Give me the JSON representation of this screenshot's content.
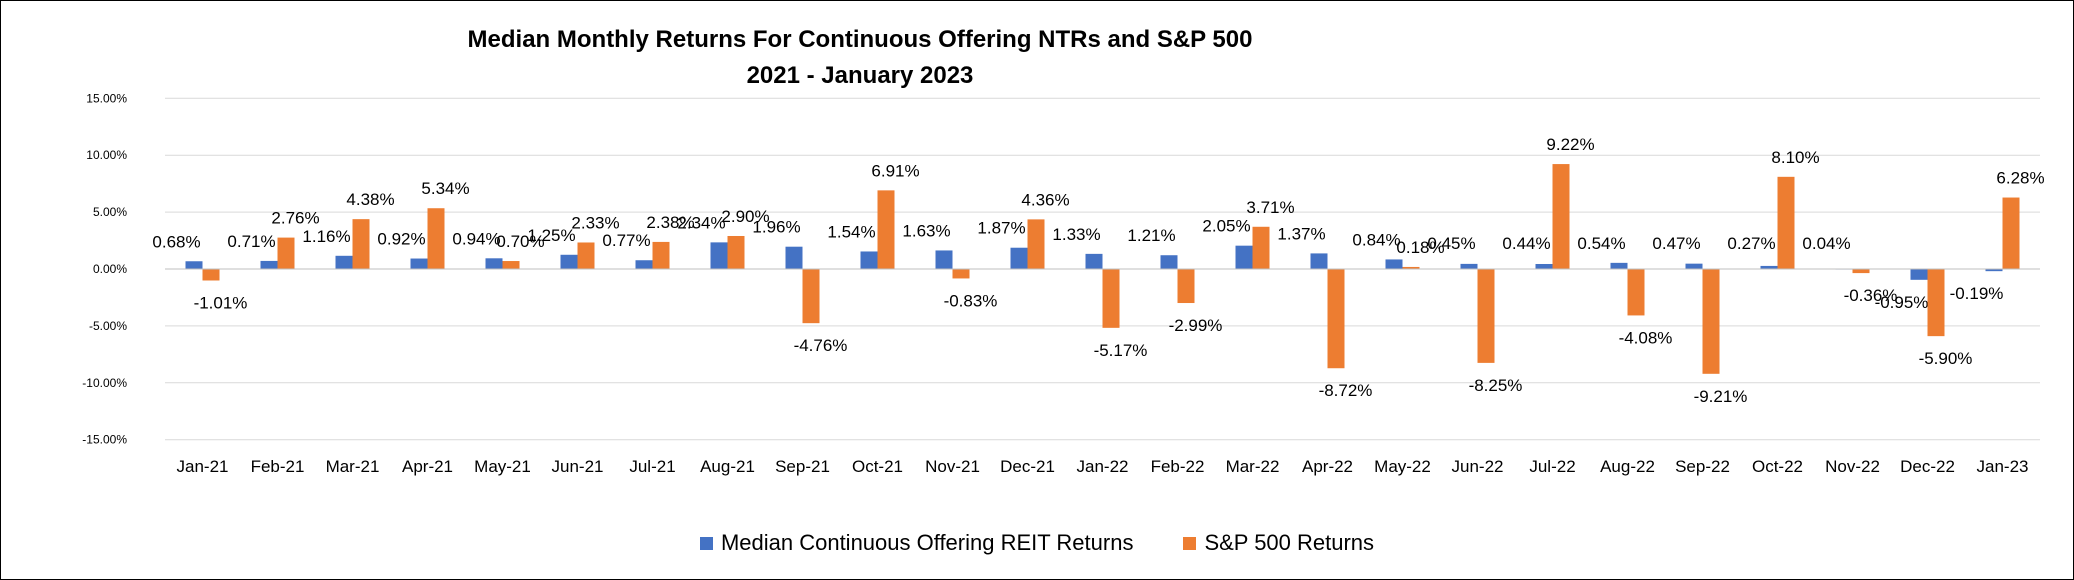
{
  "chart_data": {
    "type": "bar",
    "title_line1": "Median Monthly Returns For Continuous Offering NTRs and S&P 500",
    "title_line2": "2021 - January 2023",
    "xlabel": "",
    "ylabel": "",
    "ylim": [
      -15,
      15
    ],
    "yticks": [
      15,
      10,
      5,
      0,
      -5,
      -10,
      -15
    ],
    "ytick_labels": [
      "15.00%",
      "10.00%",
      "5.00%",
      "0.00%",
      "-5.00%",
      "-10.00%",
      "-15.00%"
    ],
    "grid": true,
    "legend_position": "bottom",
    "categories": [
      "Jan-21",
      "Feb-21",
      "Mar-21",
      "Apr-21",
      "May-21",
      "Jun-21",
      "Jul-21",
      "Aug-21",
      "Sep-21",
      "Oct-21",
      "Nov-21",
      "Dec-21",
      "Jan-22",
      "Feb-22",
      "Mar-22",
      "Apr-22",
      "May-22",
      "Jun-22",
      "Jul-22",
      "Aug-22",
      "Sep-22",
      "Oct-22",
      "Nov-22",
      "Dec-22",
      "Jan-23"
    ],
    "series": [
      {
        "name": "Median Continuous Offering REIT Returns",
        "color": "#4472c4",
        "values": [
          0.68,
          0.71,
          1.16,
          0.92,
          0.94,
          1.25,
          0.77,
          2.34,
          1.96,
          1.54,
          1.63,
          1.87,
          1.33,
          1.21,
          2.05,
          1.37,
          0.84,
          0.45,
          0.44,
          0.54,
          0.47,
          0.27,
          0.04,
          -0.95,
          -0.19
        ],
        "labels": [
          "0.68%",
          "0.71%",
          "1.16%",
          "0.92%",
          "0.94%",
          "1.25%",
          "0.77%",
          "2.34%",
          "1.96%",
          "1.54%",
          "1.63%",
          "1.87%",
          "1.33%",
          "1.21%",
          "2.05%",
          "1.37%",
          "0.84%",
          "0.45%",
          "0.44%",
          "0.54%",
          "0.47%",
          "0.27%",
          "0.04%",
          "-0.95%",
          "-0.19%"
        ]
      },
      {
        "name": "S&P 500 Returns",
        "color": "#ed7d31",
        "values": [
          -1.01,
          2.76,
          4.38,
          5.34,
          0.7,
          2.33,
          2.38,
          2.9,
          -4.76,
          6.91,
          -0.83,
          4.36,
          -5.17,
          -2.99,
          3.71,
          -8.72,
          0.18,
          -8.25,
          9.22,
          -4.08,
          -9.21,
          8.1,
          -0.36,
          -5.9,
          6.28
        ],
        "labels": [
          "-1.01%",
          "2.76%",
          "4.38%",
          "5.34%",
          "0.70%",
          "2.33%",
          "2.38%",
          "2.90%",
          "-4.76%",
          "6.91%",
          "-0.83%",
          "4.36%",
          "-5.17%",
          "-2.99%",
          "3.71%",
          "-8.72%",
          "0.18%",
          "-8.25%",
          "9.22%",
          "-4.08%",
          "-9.21%",
          "8.10%",
          "-0.36%",
          "-5.90%",
          "6.28%"
        ]
      }
    ]
  }
}
